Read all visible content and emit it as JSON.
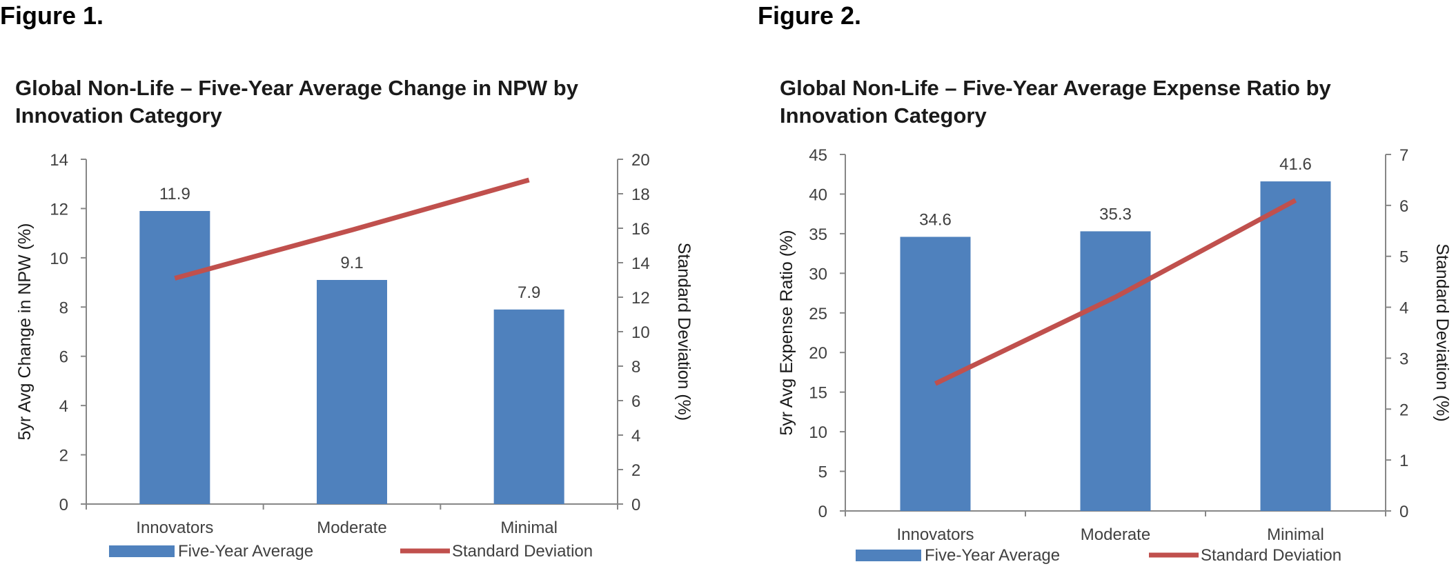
{
  "figures": [
    {
      "label": "Figure 1.",
      "title_line1": "Global Non-Life – Five-Year Average Change in NPW by",
      "title_line2": "Innovation Category"
    },
    {
      "label": "Figure 2.",
      "title_line1": "Global Non-Life – Five-Year Average Expense Ratio by",
      "title_line2": "Innovation Category"
    }
  ],
  "colors": {
    "bar": "#4f81bd",
    "line": "#c0504d",
    "axis": "#868686",
    "text": "#404040"
  },
  "chart_data": [
    {
      "type": "bar",
      "title": "Global Non-Life – Five-Year Average Change in NPW by Innovation Category",
      "categories": [
        "Innovators",
        "Moderate",
        "Minimal"
      ],
      "series": [
        {
          "name": "Five-Year Average",
          "type": "bar",
          "axis": "left",
          "values": [
            11.9,
            9.1,
            7.9
          ],
          "data_labels": [
            "11.9",
            "9.1",
            "7.9"
          ]
        },
        {
          "name": "Standard Deviation",
          "type": "line",
          "axis": "right",
          "values": [
            13.1,
            15.9,
            18.8
          ]
        }
      ],
      "ylabel": "5yr Avg Change in NPW (%)",
      "y2label": "Standard Deviation (%)",
      "ylim": [
        0,
        14
      ],
      "y2lim": [
        0,
        20
      ],
      "yticks": [
        "0",
        "2",
        "4",
        "6",
        "8",
        "10",
        "12",
        "14"
      ],
      "y2ticks": [
        "0",
        "2",
        "4",
        "6",
        "8",
        "10",
        "12",
        "14",
        "16",
        "18",
        "20"
      ],
      "grid": false,
      "legend": "bottom"
    },
    {
      "type": "bar",
      "title": "Global Non-Life – Five-Year Average Expense Ratio by Innovation Category",
      "categories": [
        "Innovators",
        "Moderate",
        "Minimal"
      ],
      "series": [
        {
          "name": "Five-Year Average",
          "type": "bar",
          "axis": "left",
          "values": [
            34.6,
            35.3,
            41.6
          ],
          "data_labels": [
            "34.6",
            "35.3",
            "41.6"
          ]
        },
        {
          "name": "Standard Deviation",
          "type": "line",
          "axis": "right",
          "values": [
            2.5,
            4.2,
            6.1
          ]
        }
      ],
      "ylabel": "5yr Avg Expense Ratio (%)",
      "y2label": "Standard Deviation (%)",
      "ylim": [
        0,
        45
      ],
      "y2lim": [
        0,
        7
      ],
      "yticks": [
        "0",
        "5",
        "10",
        "15",
        "20",
        "25",
        "30",
        "35",
        "40",
        "45"
      ],
      "y2ticks": [
        "0",
        "1",
        "2",
        "3",
        "4",
        "5",
        "6",
        "7"
      ],
      "grid": false,
      "legend": "bottom"
    }
  ]
}
